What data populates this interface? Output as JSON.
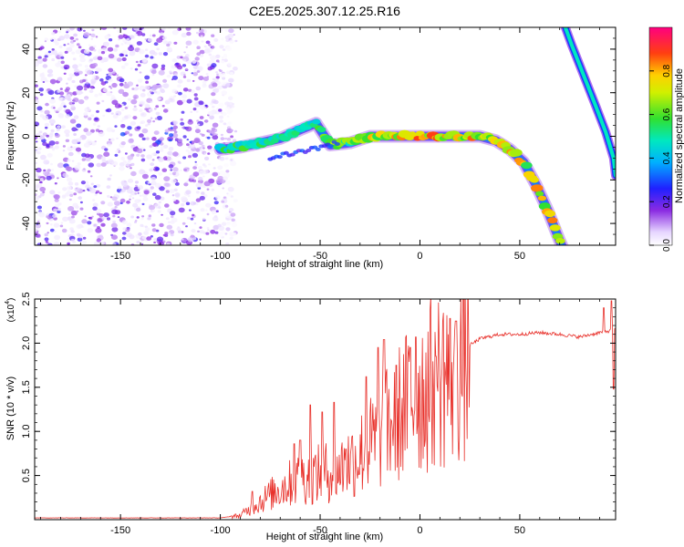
{
  "figure_title": "C2E5.2025.307.12.25.R16",
  "colors": {
    "snr_line": "#e8302a",
    "frame": "#000000",
    "background": "#ffffff"
  },
  "chart_data": [
    {
      "type": "heatmap",
      "name": "spectrogram",
      "title": "C2E5.2025.307.12.25.R16",
      "xlabel": "Height of straight line (km)",
      "ylabel": "Frequency (Hz)",
      "xlim": [
        -193,
        98
      ],
      "ylim": [
        -50,
        50
      ],
      "xticks": [
        -150,
        -100,
        -50,
        0,
        50
      ],
      "xtick_labels": [
        "-150",
        "-100",
        "-50",
        "0",
        "50"
      ],
      "yticks": [
        -40,
        -20,
        0,
        20,
        40
      ],
      "ytick_labels": [
        "-40",
        "-20",
        "0",
        "20",
        "40"
      ],
      "colorbar": {
        "label": "Normalized spectral amplitude",
        "range": [
          0,
          1
        ],
        "ticks": [
          0.0,
          0.2,
          0.4,
          0.6,
          0.8
        ],
        "tick_labels": [
          "0.0",
          "0.2",
          "0.4",
          "0.6",
          "0.8"
        ],
        "colormap": "rainbow (white-violet-blue-cyan-green-yellow-red-magenta)"
      },
      "features": {
        "noise_region_x": [
          -193,
          -100
        ],
        "main_trace": [
          {
            "x": -100,
            "y": -6
          },
          {
            "x": -90,
            "y": -5
          },
          {
            "x": -80,
            "y": -3
          },
          {
            "x": -70,
            "y": -1
          },
          {
            "x": -60,
            "y": 3
          },
          {
            "x": -52,
            "y": 6
          },
          {
            "x": -45,
            "y": -4
          },
          {
            "x": -35,
            "y": -3
          },
          {
            "x": -25,
            "y": 0
          },
          {
            "x": -10,
            "y": 0
          },
          {
            "x": 0,
            "y": 0
          },
          {
            "x": 10,
            "y": 0
          },
          {
            "x": 20,
            "y": 0
          },
          {
            "x": 30,
            "y": 0
          },
          {
            "x": 38,
            "y": -2
          },
          {
            "x": 45,
            "y": -6
          },
          {
            "x": 52,
            "y": -12
          },
          {
            "x": 58,
            "y": -22
          },
          {
            "x": 64,
            "y": -34
          },
          {
            "x": 70,
            "y": -48
          },
          {
            "x": 72,
            "y": -52
          }
        ],
        "upper_trace": [
          {
            "x": 72,
            "y": 52
          },
          {
            "x": 76,
            "y": 42
          },
          {
            "x": 82,
            "y": 28
          },
          {
            "x": 88,
            "y": 14
          },
          {
            "x": 93,
            "y": 2
          },
          {
            "x": 97,
            "y": -10
          },
          {
            "x": 98,
            "y": -18
          }
        ]
      }
    },
    {
      "type": "line",
      "name": "snr",
      "xlabel": "Height of straight line (km)",
      "ylabel": "SNR (10 * v/v)",
      "scale_label": "(x10",
      "scale_exponent": "4",
      "xlim": [
        -193,
        98
      ],
      "ylim": [
        0,
        2.5
      ],
      "xticks": [
        -150,
        -100,
        -50,
        0,
        50
      ],
      "xtick_labels": [
        "-150",
        "-100",
        "-50",
        "0",
        "50"
      ],
      "yticks": [
        0.5,
        1.0,
        1.5,
        2.0,
        2.5
      ],
      "ytick_labels": [
        "0.5",
        "1.0",
        "1.5",
        "2.0",
        "2.5"
      ],
      "envelope": [
        {
          "x": -193,
          "y": 0.02
        },
        {
          "x": -100,
          "y": 0.02
        },
        {
          "x": -90,
          "y": 0.05
        },
        {
          "x": -80,
          "y": 0.22
        },
        {
          "x": -70,
          "y": 0.38
        },
        {
          "x": -60,
          "y": 0.5
        },
        {
          "x": -50,
          "y": 0.55
        },
        {
          "x": -40,
          "y": 0.62
        },
        {
          "x": -30,
          "y": 0.8
        },
        {
          "x": -20,
          "y": 1.0
        },
        {
          "x": -10,
          "y": 1.3
        },
        {
          "x": 0,
          "y": 1.55
        },
        {
          "x": 10,
          "y": 1.72
        },
        {
          "x": 20,
          "y": 1.9
        },
        {
          "x": 30,
          "y": 2.05
        },
        {
          "x": 40,
          "y": 2.1
        },
        {
          "x": 50,
          "y": 2.1
        },
        {
          "x": 60,
          "y": 2.12
        },
        {
          "x": 70,
          "y": 2.1
        },
        {
          "x": 80,
          "y": 2.07
        },
        {
          "x": 90,
          "y": 2.12
        },
        {
          "x": 98,
          "y": 2.15
        }
      ],
      "spikes": [
        {
          "x": -84,
          "y": 0.32
        },
        {
          "x": -63,
          "y": 0.86
        },
        {
          "x": -60,
          "y": 0.9
        },
        {
          "x": -55,
          "y": 1.3
        },
        {
          "x": -49,
          "y": 1.22
        },
        {
          "x": -43,
          "y": 1.33
        },
        {
          "x": -37,
          "y": 0.8
        },
        {
          "x": -27,
          "y": 1.62
        },
        {
          "x": -21,
          "y": 1.95
        },
        {
          "x": -18,
          "y": 2.04
        },
        {
          "x": -12,
          "y": 1.75
        },
        {
          "x": -5,
          "y": 1.95
        },
        {
          "x": -2,
          "y": 2.07
        },
        {
          "x": 8,
          "y": 1.85
        },
        {
          "x": 15,
          "y": 2.28
        },
        {
          "x": 18,
          "y": 2.25
        },
        {
          "x": 92,
          "y": 2.4
        },
        {
          "x": 96,
          "y": 2.48
        },
        {
          "x": 97,
          "y": 1.48
        }
      ]
    }
  ]
}
